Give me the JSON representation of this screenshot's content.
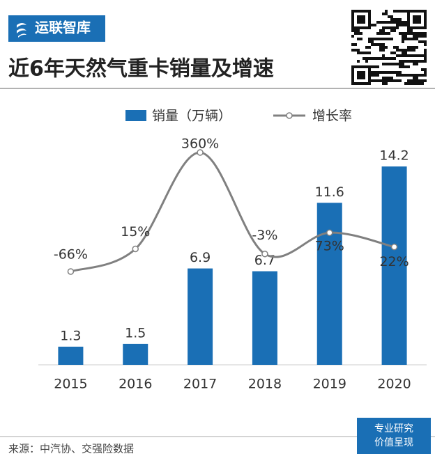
{
  "header": {
    "logo": "运联智库",
    "title": "近6年天然气重卡销量及增速"
  },
  "chart_data": {
    "type": "bar",
    "categories": [
      "2015",
      "2016",
      "2017",
      "2018",
      "2019",
      "2020"
    ],
    "series": [
      {
        "name": "销量（万辆）",
        "type": "bar",
        "color": "#1a6fb5",
        "values": [
          1.3,
          1.5,
          6.9,
          6.7,
          11.6,
          14.2
        ]
      },
      {
        "name": "增长率",
        "type": "line",
        "axis": "y2",
        "color": "#808080",
        "values": [
          -66,
          15,
          360,
          -3,
          73,
          22
        ],
        "value_labels": [
          "-66%",
          "15%",
          "360%",
          "-3%",
          "73%",
          "22%"
        ]
      }
    ],
    "ylim": [
      0,
      16
    ],
    "y2lim": [
      -400,
      400
    ],
    "legend": "top"
  },
  "footer": {
    "source": "来源：中汽协、交强险数据",
    "badge": [
      "专业研究",
      "价值呈现"
    ]
  }
}
